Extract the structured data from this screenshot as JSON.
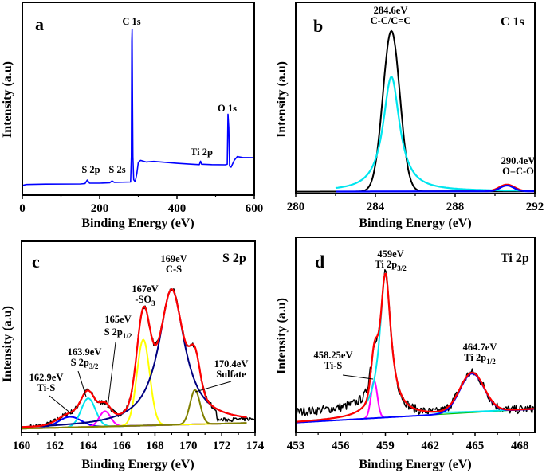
{
  "chart_data": [
    {
      "panel": "a",
      "type": "line",
      "xlabel": "Binding Energy (eV)",
      "ylabel": "Intensity (a.u)",
      "xlim": [
        0,
        600
      ],
      "ylim": [
        0,
        1
      ],
      "xticks": [
        "0",
        "200",
        "400",
        "600"
      ],
      "xtick_values": [
        0,
        200,
        400,
        600
      ],
      "minor_xtick_values": [
        100,
        300,
        500
      ],
      "annotations": [
        "C 1s",
        "O 1s",
        "Ti 2p",
        "S 2p",
        "S 2s"
      ],
      "series": [
        {
          "color": "#0000ff",
          "points": [
            [
              0,
              0.05
            ],
            [
              10,
              0.055
            ],
            [
              60,
              0.057
            ],
            [
              150,
              0.058
            ],
            [
              162,
              0.06
            ],
            [
              168,
              0.078
            ],
            [
              174,
              0.062
            ],
            [
              200,
              0.062
            ],
            [
              226,
              0.064
            ],
            [
              232,
              0.074
            ],
            [
              238,
              0.066
            ],
            [
              280,
              0.068
            ],
            [
              282,
              0.2
            ],
            [
              283,
              0.8
            ],
            [
              284,
              0.86
            ],
            [
              285,
              0.5
            ],
            [
              286,
              0.2
            ],
            [
              288,
              0.08
            ],
            [
              292,
              0.07
            ],
            [
              296,
              0.11
            ],
            [
              300,
              0.17
            ],
            [
              306,
              0.18
            ],
            [
              320,
              0.172
            ],
            [
              340,
              0.175
            ],
            [
              400,
              0.165
            ],
            [
              440,
              0.16
            ],
            [
              458,
              0.158
            ],
            [
              461,
              0.176
            ],
            [
              464,
              0.16
            ],
            [
              490,
              0.158
            ],
            [
              525,
              0.157
            ],
            [
              530,
              0.16
            ],
            [
              532,
              0.42
            ],
            [
              534,
              0.35
            ],
            [
              536,
              0.15
            ],
            [
              540,
              0.145
            ],
            [
              548,
              0.18
            ],
            [
              556,
              0.2
            ],
            [
              570,
              0.195
            ],
            [
              600,
              0.194
            ]
          ]
        }
      ]
    },
    {
      "panel": "b",
      "type": "line",
      "title": "C 1s",
      "xlabel": "Binding Energy (eV)",
      "ylabel": "Intensity (a.u)",
      "xlim": [
        280,
        292
      ],
      "ylim": [
        0,
        1
      ],
      "xticks": [
        "280",
        "284",
        "288",
        "292"
      ],
      "xtick_values": [
        280,
        284,
        288,
        292
      ],
      "minor_xtick_values": [
        282,
        286,
        290
      ],
      "baseline": [
        0.01,
        0.012
      ],
      "peaks": [
        {
          "role": "data",
          "color": "#000000",
          "center": 284.8,
          "height": 0.84,
          "fwhm": 1.0,
          "shape": "gauss",
          "range": [
            280,
            292
          ]
        },
        {
          "role": "component",
          "color": "#00e5ee",
          "center": 284.8,
          "height": 0.6,
          "fwhm": 1.0,
          "shape": "lorentz",
          "range": [
            282,
            292
          ]
        },
        {
          "role": "envelope",
          "color": "#ff0000",
          "center": 290.6,
          "height": 0.035,
          "fwhm": 0.9,
          "shape": "gauss",
          "range": [
            289.5,
            292
          ]
        },
        {
          "role": "component",
          "color": "#0000ff",
          "center": 290.6,
          "height": 0.03,
          "fwhm": 0.8,
          "shape": "gauss",
          "range": [
            282,
            292
          ]
        }
      ],
      "annotations": [
        {
          "lines": [
            {
              "main": "284.6eV"
            },
            {
              "main": "C-C/C=C"
            }
          ]
        },
        {
          "lines": [
            {
              "main": "290.4eV"
            },
            {
              "main": "O=C-O"
            }
          ]
        }
      ]
    },
    {
      "panel": "c",
      "type": "line",
      "title": "S 2p",
      "xlabel": "Binding Energy (eV)",
      "ylabel": "Intensity (a.u)",
      "xlim": [
        160,
        174
      ],
      "ylim": [
        0,
        1
      ],
      "xticks": [
        "160",
        "162",
        "164",
        "166",
        "168",
        "170",
        "172",
        "174"
      ],
      "xtick_values": [
        160,
        162,
        164,
        166,
        168,
        170,
        172,
        174
      ],
      "minor_xtick_values": [
        161,
        163,
        165,
        167,
        169,
        171,
        173
      ],
      "baseline": [
        0.02,
        0.05
      ],
      "fit_range": [
        160,
        173.5
      ],
      "data_range": [
        160.5,
        174
      ],
      "peaks": [
        {
          "color": "#0000ff",
          "center": 162.9,
          "height": 0.055,
          "fwhm": 1.6,
          "shape": "gauss"
        },
        {
          "color": "#00e5ee",
          "center": 164.0,
          "height": 0.15,
          "fwhm": 1.0,
          "shape": "gauss"
        },
        {
          "color": "#ff00ff",
          "center": 165.0,
          "height": 0.08,
          "fwhm": 0.8,
          "shape": "gauss"
        },
        {
          "color": "#ffff00",
          "center": 167.3,
          "height": 0.45,
          "fwhm": 0.9,
          "shape": "gauss"
        },
        {
          "color": "#000080",
          "center": 169.0,
          "height": 0.71,
          "fwhm": 1.9,
          "shape": "lorentz"
        },
        {
          "color": "#808000",
          "center": 170.4,
          "height": 0.18,
          "fwhm": 0.7,
          "shape": "gauss"
        }
      ],
      "envelope_color": "#ff0000",
      "data_color": "#000000",
      "annotations": [
        {
          "lines": [
            {
              "main": "169eV"
            },
            {
              "main": "C-S"
            }
          ]
        },
        {
          "lines": [
            {
              "main": "167eV"
            },
            {
              "main": "-SO",
              "sub": "3"
            }
          ]
        },
        {
          "lines": [
            {
              "main": "165eV"
            },
            {
              "main": "S 2p",
              "sub": "1/2"
            }
          ]
        },
        {
          "lines": [
            {
              "main": "163.9eV"
            },
            {
              "main": "S 2p",
              "sub": "3/2"
            }
          ]
        },
        {
          "lines": [
            {
              "main": "162.9eV"
            },
            {
              "main": "Ti-S"
            }
          ]
        },
        {
          "lines": [
            {
              "main": "170.4eV"
            },
            {
              "main": "Sulfate"
            }
          ]
        }
      ]
    },
    {
      "panel": "d",
      "type": "line",
      "title": "Ti 2p",
      "xlabel": "Binding Energy (eV)",
      "ylabel": "Intensity (a.u)",
      "xlim": [
        453,
        469
      ],
      "ylim": [
        0,
        1
      ],
      "xticks": [
        "453",
        "456",
        "459",
        "462",
        "465",
        "468"
      ],
      "xtick_values": [
        453,
        456,
        459,
        462,
        465,
        468
      ],
      "minor_xtick_values": [
        454.5,
        457.5,
        460.5,
        463.5,
        466.5
      ],
      "baseline": [
        0.05,
        0.12
      ],
      "fit_range": [
        453,
        469
      ],
      "data_range": [
        453,
        469
      ],
      "peaks": [
        {
          "color": "#ff00ff",
          "center": 458.25,
          "height": 0.19,
          "fwhm": 0.5,
          "shape": "gauss",
          "range": [
            457.6,
            458.9
          ]
        },
        {
          "color": "#00e5ee",
          "center": 459.0,
          "height": 0.74,
          "fwhm": 0.9,
          "shape": "lorentz"
        },
        {
          "color": "#0000ff",
          "center": 464.8,
          "height": 0.2,
          "fwhm": 1.9,
          "shape": "gauss"
        }
      ],
      "envelope_color": "#ff0000",
      "data_color": "#000000",
      "annotations": [
        {
          "lines": [
            {
              "main": "459eV"
            },
            {
              "main": "Ti 2p",
              "sub": "3/2"
            }
          ]
        },
        {
          "lines": [
            {
              "main": "458.25eV"
            },
            {
              "main": "Ti-S"
            }
          ]
        },
        {
          "lines": [
            {
              "main": "464.7eV"
            },
            {
              "main": "Ti 2p",
              "sub": "1/2"
            }
          ]
        }
      ]
    }
  ]
}
